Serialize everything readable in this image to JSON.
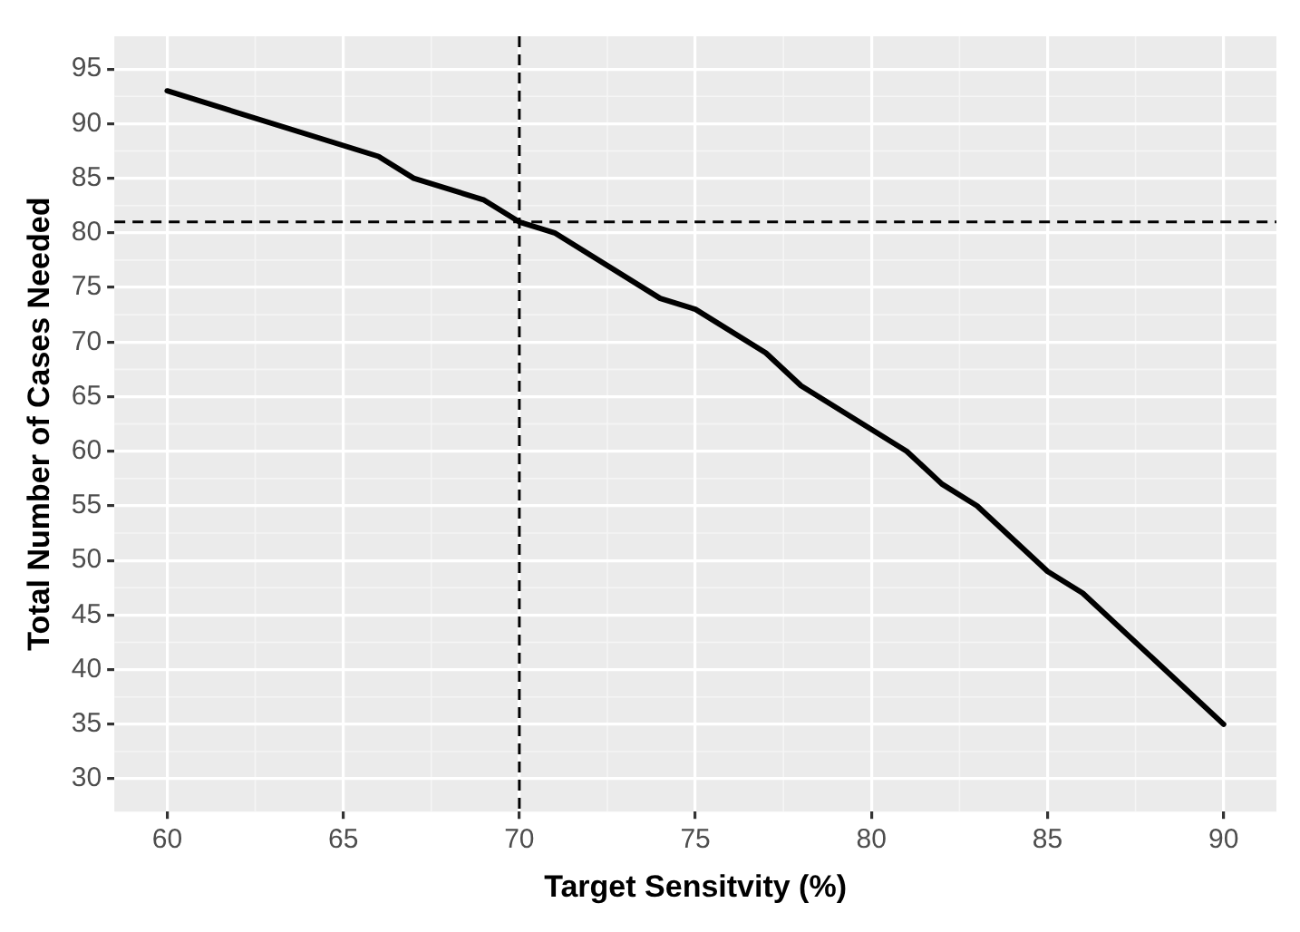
{
  "chart_data": {
    "type": "line",
    "xlabel": "Target Sensitvity (%)",
    "ylabel": "Total Number of Cases Needed",
    "x": [
      60,
      66,
      67,
      69,
      70,
      71,
      74,
      75,
      77,
      78,
      81,
      82,
      83,
      85,
      86,
      90
    ],
    "series": [
      {
        "color": "#000000",
        "values": [
          93,
          87,
          85,
          83,
          81,
          80,
          74,
          73,
          69,
          66,
          60,
          57,
          55,
          49,
          47,
          35
        ]
      }
    ],
    "xlim": [
      58.5,
      91.5
    ],
    "xticks": [
      60,
      65,
      70,
      75,
      80,
      85,
      90
    ],
    "ylim": [
      27,
      98
    ],
    "yticks": [
      30,
      35,
      40,
      45,
      50,
      55,
      60,
      65,
      70,
      75,
      80,
      85,
      90,
      95
    ],
    "ref_lines": [
      {
        "axis": "x",
        "value": 70,
        "color": "#000000",
        "line_style": "dashed"
      },
      {
        "axis": "y",
        "value": 81,
        "color": "#000000",
        "line_style": "dashed"
      }
    ],
    "grid": true,
    "legend": false,
    "marker": "none",
    "line_style": "solid"
  }
}
